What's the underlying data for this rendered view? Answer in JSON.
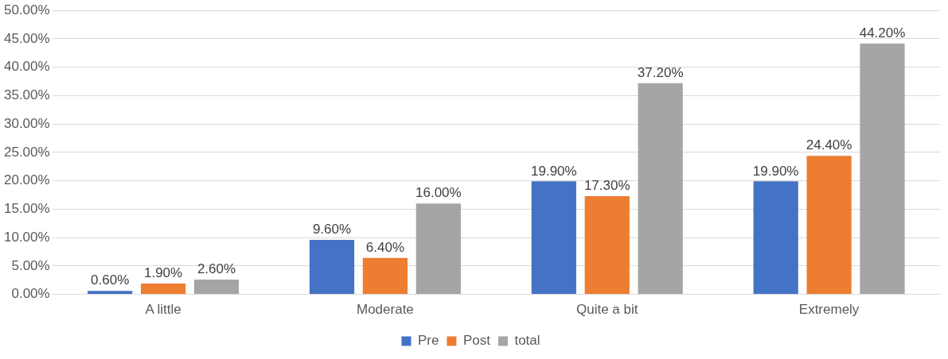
{
  "chart_data": {
    "type": "bar",
    "categories": [
      "A little",
      "Moderate",
      "Quite a bit",
      "Extremely"
    ],
    "series": [
      {
        "name": "Pre",
        "color": "#4472c4",
        "values": [
          0.6,
          9.6,
          19.9,
          19.9
        ],
        "value_labels": [
          "0.60%",
          "9.60%",
          "19.90%",
          "19.90%"
        ]
      },
      {
        "name": "Post",
        "color": "#ed7d31",
        "values": [
          1.9,
          6.4,
          17.3,
          24.4
        ],
        "value_labels": [
          "1.90%",
          "6.40%",
          "17.30%",
          "24.40%"
        ]
      },
      {
        "name": "total",
        "color": "#a5a5a5",
        "values": [
          2.6,
          16.0,
          37.2,
          44.2
        ],
        "value_labels": [
          "2.60%",
          "16.00%",
          "37.20%",
          "44.20%"
        ]
      }
    ],
    "ylim": [
      0,
      50
    ],
    "yticks": [
      {
        "value": 0,
        "label": "0.00%"
      },
      {
        "value": 5,
        "label": "5.00%"
      },
      {
        "value": 10,
        "label": "10.00%"
      },
      {
        "value": 15,
        "label": "15.00%"
      },
      {
        "value": 20,
        "label": "20.00%"
      },
      {
        "value": 25,
        "label": "25.00%"
      },
      {
        "value": 30,
        "label": "30.00%"
      },
      {
        "value": 35,
        "label": "35.00%"
      },
      {
        "value": 40,
        "label": "40.00%"
      },
      {
        "value": 45,
        "label": "45.00%"
      },
      {
        "value": 50,
        "label": "50.00%"
      }
    ],
    "grid": "y",
    "legend": "bottom"
  }
}
